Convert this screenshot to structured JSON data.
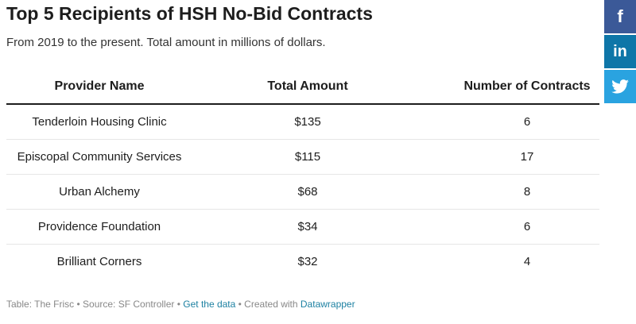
{
  "header": {
    "title": "Top 5 Recipients of HSH No-Bid Contracts",
    "subtitle": "From 2019 to the present. Total amount in millions of dollars."
  },
  "chart_data": {
    "type": "table",
    "columns": [
      "Provider Name",
      "Total Amount",
      "Number of Contracts"
    ],
    "rows": [
      {
        "provider": "Tenderloin Housing Clinic",
        "amount": "$135",
        "contracts": "6"
      },
      {
        "provider": "Episcopal Community Services",
        "amount": "$115",
        "contracts": "17"
      },
      {
        "provider": "Urban Alchemy",
        "amount": "$68",
        "contracts": "8"
      },
      {
        "provider": "Providence Foundation",
        "amount": "$34",
        "contracts": "6"
      },
      {
        "provider": "Brilliant Corners",
        "amount": "$32",
        "contracts": "4"
      }
    ]
  },
  "footer": {
    "prefix": "Table: The Frisc • Source: SF Controller • ",
    "get_data": "Get the data",
    "middle": " • Created with ",
    "datawrapper": "Datawrapper"
  },
  "social": {
    "facebook_icon": "facebook-icon",
    "linkedin_icon": "linkedin-icon",
    "twitter_icon": "twitter-icon",
    "colors": {
      "facebook": "#3b5998",
      "linkedin": "#0e76a8",
      "twitter": "#2aa3e0"
    }
  }
}
